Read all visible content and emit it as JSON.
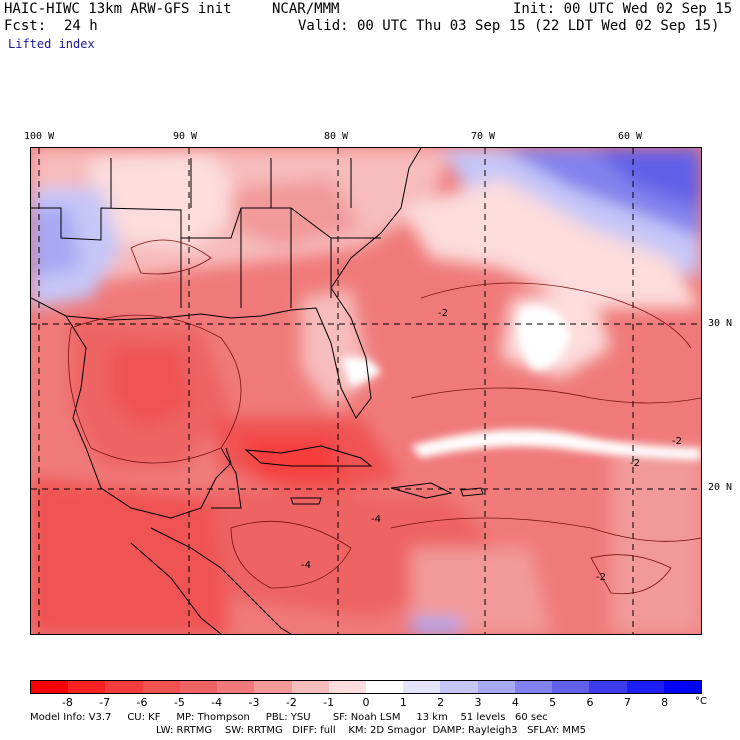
{
  "header": {
    "model": "HAIC-HIWC 13km ARW-GFS init",
    "org": "NCAR/MMM",
    "init": "Init: 00 UTC Wed 02 Sep 15",
    "fcst_label": "Fcst:",
    "fcst_value": "24 h",
    "valid": "Valid: 00 UTC Thu 03 Sep 15 (22 LDT Wed 02 Sep 15)",
    "field": "Lifted index"
  },
  "map": {
    "lon_labels": [
      "100 W",
      "90 W",
      "80 W",
      "70 W",
      "60 W"
    ],
    "lat_labels": [
      "30 N",
      "20 N"
    ],
    "contour_labels": [
      "-2",
      "-4",
      "-2",
      "-2",
      "-2",
      "-4"
    ]
  },
  "colorbar": {
    "ticks": [
      "-8",
      "-7",
      "-6",
      "-5",
      "-4",
      "-3",
      "-2",
      "-1",
      "0",
      "1",
      "2",
      "3",
      "4",
      "5",
      "6",
      "7",
      "8"
    ],
    "unit": "°C",
    "colors": [
      "#ff0000",
      "#ff2222",
      "#f63c3c",
      "#f05252",
      "#ee6464",
      "#f07a7a",
      "#f29a9a",
      "#f7bcbc",
      "#fcdcdc",
      "#ffffff",
      "#e4e4fc",
      "#c6c6f8",
      "#a8a8f4",
      "#8282ee",
      "#6060e8",
      "#3c3cee",
      "#1e1ef6",
      "#0000ff"
    ]
  },
  "footer": {
    "line1": "Model Info: V3.7     CU: KF     MP: Thompson     PBL: YSU       SF: Noah LSM     13 km    51 levels   60 sec",
    "line2": "LW: RRTMG    SW: RRTMG   DIFF: full    KM: 2D Smagor  DAMP: Rayleigh3   SFLAY: MM5"
  }
}
